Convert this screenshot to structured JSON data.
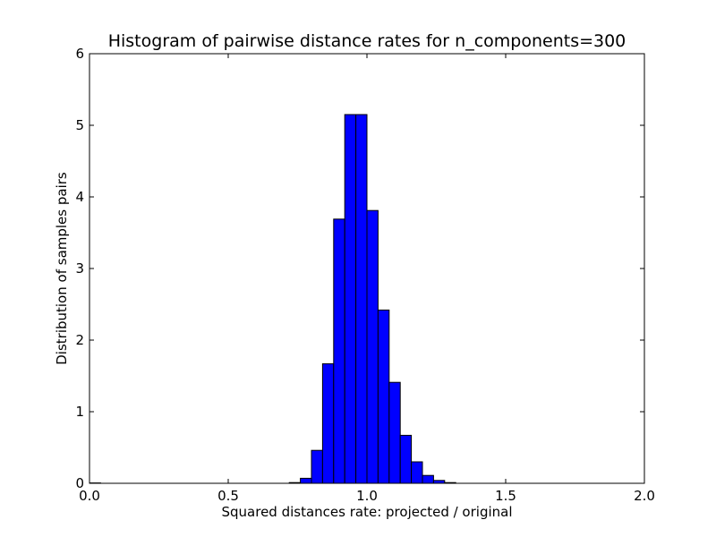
{
  "chart_data": {
    "type": "bar",
    "title": "Histogram of pairwise distance rates for n_components=300",
    "xlabel": "Squared distances rate: projected / original",
    "ylabel": "Distribution of samples pairs",
    "xlim": [
      0.0,
      2.0
    ],
    "ylim": [
      0,
      6
    ],
    "xticks": [
      "0.0",
      "0.5",
      "1.0",
      "1.5",
      "2.0"
    ],
    "yticks": [
      "0",
      "1",
      "2",
      "3",
      "4",
      "5",
      "6"
    ],
    "grid": false,
    "bar_color": "#0000ff",
    "edge_color": "#000000",
    "bins": [
      {
        "x0": 0.0,
        "x1": 0.04,
        "value": 0.005
      },
      {
        "x0": 0.04,
        "x1": 0.08,
        "value": 0.0
      },
      {
        "x0": 0.08,
        "x1": 0.12,
        "value": 0.0
      },
      {
        "x0": 0.12,
        "x1": 0.16,
        "value": 0.0
      },
      {
        "x0": 0.16,
        "x1": 0.2,
        "value": 0.0
      },
      {
        "x0": 0.2,
        "x1": 0.24,
        "value": 0.0
      },
      {
        "x0": 0.24,
        "x1": 0.28,
        "value": 0.0
      },
      {
        "x0": 0.28,
        "x1": 0.32,
        "value": 0.0
      },
      {
        "x0": 0.32,
        "x1": 0.36,
        "value": 0.0
      },
      {
        "x0": 0.36,
        "x1": 0.4,
        "value": 0.0
      },
      {
        "x0": 0.4,
        "x1": 0.44,
        "value": 0.0
      },
      {
        "x0": 0.44,
        "x1": 0.48,
        "value": 0.0
      },
      {
        "x0": 0.48,
        "x1": 0.52,
        "value": 0.0
      },
      {
        "x0": 0.52,
        "x1": 0.56,
        "value": 0.0
      },
      {
        "x0": 0.56,
        "x1": 0.6,
        "value": 0.0
      },
      {
        "x0": 0.6,
        "x1": 0.64,
        "value": 0.0
      },
      {
        "x0": 0.64,
        "x1": 0.68,
        "value": 0.0
      },
      {
        "x0": 0.68,
        "x1": 0.72,
        "value": 0.0
      },
      {
        "x0": 0.72,
        "x1": 0.76,
        "value": 0.01
      },
      {
        "x0": 0.76,
        "x1": 0.8,
        "value": 0.07
      },
      {
        "x0": 0.8,
        "x1": 0.84,
        "value": 0.46
      },
      {
        "x0": 0.84,
        "x1": 0.88,
        "value": 1.67
      },
      {
        "x0": 0.88,
        "x1": 0.92,
        "value": 3.69
      },
      {
        "x0": 0.92,
        "x1": 0.96,
        "value": 5.15
      },
      {
        "x0": 0.96,
        "x1": 1.0,
        "value": 5.15
      },
      {
        "x0": 1.0,
        "x1": 1.04,
        "value": 3.81
      },
      {
        "x0": 1.04,
        "x1": 1.08,
        "value": 2.42
      },
      {
        "x0": 1.08,
        "x1": 1.12,
        "value": 1.41
      },
      {
        "x0": 1.12,
        "x1": 1.16,
        "value": 0.67
      },
      {
        "x0": 1.16,
        "x1": 1.2,
        "value": 0.3
      },
      {
        "x0": 1.2,
        "x1": 1.24,
        "value": 0.11
      },
      {
        "x0": 1.24,
        "x1": 1.28,
        "value": 0.04
      },
      {
        "x0": 1.28,
        "x1": 1.32,
        "value": 0.01
      },
      {
        "x0": 1.32,
        "x1": 1.36,
        "value": 0.0
      }
    ]
  }
}
